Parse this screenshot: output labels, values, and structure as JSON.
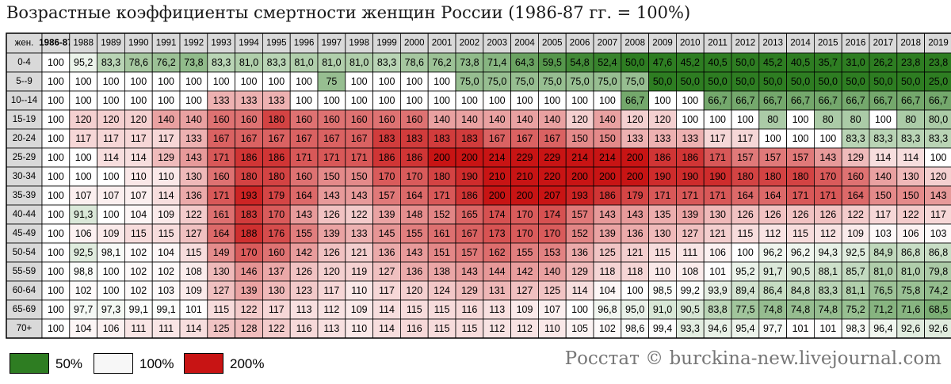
{
  "title": "Возрастные коэффициенты смертности женщин России (1986-87 гг. = 100%)",
  "credit": "Росстат © burckina-new.livejournal.com",
  "legend": [
    {
      "label": "50%",
      "color": "#2e7d22"
    },
    {
      "label": "100%",
      "color": "#f7f7f7"
    },
    {
      "label": "200%",
      "color": "#c81414"
    }
  ],
  "colors": {
    "low": "#2e7d22",
    "mid": "#ffffff",
    "high": "#c81414",
    "header": "#d9d9d9",
    "border": "#000000"
  },
  "chart_data": {
    "type": "heatmap",
    "corner_label": "жен.",
    "columns": [
      "1986-87",
      "1988",
      "1989",
      "1990",
      "1991",
      "1992",
      "1993",
      "1994",
      "1995",
      "1996",
      "1997",
      "1998",
      "1999",
      "2000",
      "2001",
      "2002",
      "2003",
      "2004",
      "2005",
      "2006",
      "2007",
      "2008",
      "2009",
      "2010",
      "2011",
      "2012",
      "2013",
      "2014",
      "2015",
      "2016",
      "2017",
      "2018",
      "2019"
    ],
    "rows": [
      "0-4",
      "5--9",
      "10--14",
      "15-19",
      "20-24",
      "25-29",
      "30-34",
      "35-39",
      "40-44",
      "45-49",
      "50-54",
      "55-59",
      "60-64",
      "65-69",
      "70+"
    ],
    "scale": {
      "min": 50,
      "mid": 100,
      "max": 200
    },
    "values": [
      [
        "100",
        "95,2",
        "83,3",
        "78,6",
        "76,2",
        "73,8",
        "83,3",
        "81,0",
        "83,3",
        "81,0",
        "81,0",
        "81,0",
        "83,3",
        "78,6",
        "76,2",
        "73,8",
        "71,4",
        "64,3",
        "59,5",
        "54,8",
        "52,4",
        "50,0",
        "47,6",
        "45,2",
        "40,5",
        "50,0",
        "45,2",
        "40,5",
        "35,7",
        "31,0",
        "26,2",
        "23,8",
        "23,8"
      ],
      [
        "100",
        "100",
        "100",
        "100",
        "100",
        "100",
        "100",
        "100",
        "100",
        "100",
        "75",
        "100",
        "100",
        "100",
        "100",
        "75,0",
        "75,0",
        "75,0",
        "75,0",
        "75,0",
        "75,0",
        "75,0",
        "50,0",
        "50,0",
        "50,0",
        "50,0",
        "50,0",
        "50,0",
        "50,0",
        "50,0",
        "50,0",
        "50,0",
        "25,0"
      ],
      [
        "100",
        "100",
        "100",
        "100",
        "100",
        "100",
        "133",
        "133",
        "133",
        "100",
        "100",
        "100",
        "100",
        "100",
        "100",
        "100",
        "100",
        "100",
        "100",
        "100",
        "100",
        "66,7",
        "100",
        "100",
        "66,7",
        "66,7",
        "66,7",
        "66,7",
        "66,7",
        "66,7",
        "66,7",
        "66,7",
        "66,7"
      ],
      [
        "100",
        "120",
        "120",
        "120",
        "140",
        "140",
        "160",
        "160",
        "180",
        "160",
        "160",
        "160",
        "160",
        "160",
        "140",
        "140",
        "140",
        "140",
        "140",
        "120",
        "140",
        "120",
        "120",
        "100",
        "100",
        "100",
        "80",
        "100",
        "80",
        "80",
        "100",
        "80",
        "80,0"
      ],
      [
        "100",
        "117",
        "117",
        "117",
        "117",
        "133",
        "167",
        "167",
        "167",
        "167",
        "167",
        "167",
        "183",
        "183",
        "183",
        "183",
        "167",
        "167",
        "167",
        "150",
        "150",
        "133",
        "133",
        "133",
        "117",
        "117",
        "100",
        "100",
        "100",
        "83,3",
        "83,3",
        "83,3",
        "83,3"
      ],
      [
        "100",
        "100",
        "114",
        "114",
        "129",
        "143",
        "171",
        "186",
        "186",
        "171",
        "171",
        "171",
        "186",
        "186",
        "200",
        "200",
        "214",
        "229",
        "229",
        "214",
        "214",
        "200",
        "186",
        "186",
        "171",
        "157",
        "157",
        "157",
        "143",
        "129",
        "114",
        "114",
        "100"
      ],
      [
        "100",
        "100",
        "100",
        "110",
        "110",
        "130",
        "160",
        "180",
        "180",
        "160",
        "150",
        "150",
        "170",
        "170",
        "180",
        "190",
        "210",
        "210",
        "220",
        "200",
        "200",
        "200",
        "190",
        "190",
        "190",
        "180",
        "180",
        "180",
        "170",
        "160",
        "140",
        "130",
        "120"
      ],
      [
        "100",
        "107",
        "107",
        "107",
        "114",
        "136",
        "171",
        "193",
        "179",
        "164",
        "143",
        "143",
        "157",
        "164",
        "171",
        "186",
        "200",
        "200",
        "207",
        "193",
        "186",
        "179",
        "171",
        "171",
        "171",
        "164",
        "164",
        "171",
        "171",
        "164",
        "150",
        "150",
        "143"
      ],
      [
        "100",
        "91,3",
        "100",
        "104",
        "109",
        "122",
        "161",
        "183",
        "170",
        "143",
        "126",
        "122",
        "139",
        "148",
        "152",
        "165",
        "174",
        "170",
        "174",
        "157",
        "143",
        "143",
        "135",
        "139",
        "130",
        "126",
        "126",
        "126",
        "126",
        "122",
        "117",
        "122",
        "117"
      ],
      [
        "100",
        "106",
        "109",
        "115",
        "115",
        "127",
        "164",
        "188",
        "176",
        "155",
        "139",
        "133",
        "145",
        "155",
        "161",
        "167",
        "173",
        "170",
        "170",
        "152",
        "139",
        "136",
        "130",
        "127",
        "121",
        "115",
        "112",
        "115",
        "112",
        "109",
        "103",
        "106",
        "103"
      ],
      [
        "100",
        "92,5",
        "98,1",
        "102",
        "104",
        "115",
        "149",
        "170",
        "160",
        "142",
        "126",
        "121",
        "136",
        "143",
        "151",
        "157",
        "162",
        "155",
        "153",
        "136",
        "125",
        "121",
        "115",
        "111",
        "106",
        "100",
        "96,2",
        "96,2",
        "94,3",
        "92,5",
        "84,9",
        "86,8",
        "86,8"
      ],
      [
        "100",
        "98,8",
        "100",
        "102",
        "102",
        "108",
        "130",
        "146",
        "137",
        "126",
        "120",
        "119",
        "127",
        "136",
        "138",
        "143",
        "144",
        "142",
        "140",
        "129",
        "118",
        "118",
        "110",
        "108",
        "101",
        "95,2",
        "91,7",
        "90,5",
        "88,1",
        "85,7",
        "81,0",
        "81,0",
        "79,8"
      ],
      [
        "100",
        "102",
        "100",
        "102",
        "103",
        "109",
        "127",
        "139",
        "130",
        "123",
        "117",
        "110",
        "117",
        "120",
        "124",
        "129",
        "131",
        "127",
        "125",
        "114",
        "104",
        "100",
        "98,5",
        "99,2",
        "93,9",
        "89,4",
        "86,4",
        "84,8",
        "83,3",
        "81,1",
        "76,5",
        "75,8",
        "74,2"
      ],
      [
        "100",
        "97,7",
        "97,3",
        "99,1",
        "99,1",
        "101",
        "115",
        "122",
        "117",
        "113",
        "112",
        "109",
        "114",
        "115",
        "115",
        "116",
        "113",
        "109",
        "107",
        "100",
        "96,8",
        "95,0",
        "91,0",
        "90,5",
        "83,8",
        "77,5",
        "74,8",
        "74,8",
        "74,8",
        "75,2",
        "71,2",
        "71,6",
        "68,5"
      ],
      [
        "100",
        "104",
        "106",
        "111",
        "111",
        "114",
        "125",
        "128",
        "122",
        "116",
        "113",
        "110",
        "114",
        "116",
        "115",
        "115",
        "112",
        "112",
        "110",
        "105",
        "102",
        "98,6",
        "99,4",
        "93,3",
        "94,6",
        "95,4",
        "97,7",
        "101",
        "101",
        "98,3",
        "96,4",
        "92,6",
        "92,6"
      ]
    ]
  }
}
